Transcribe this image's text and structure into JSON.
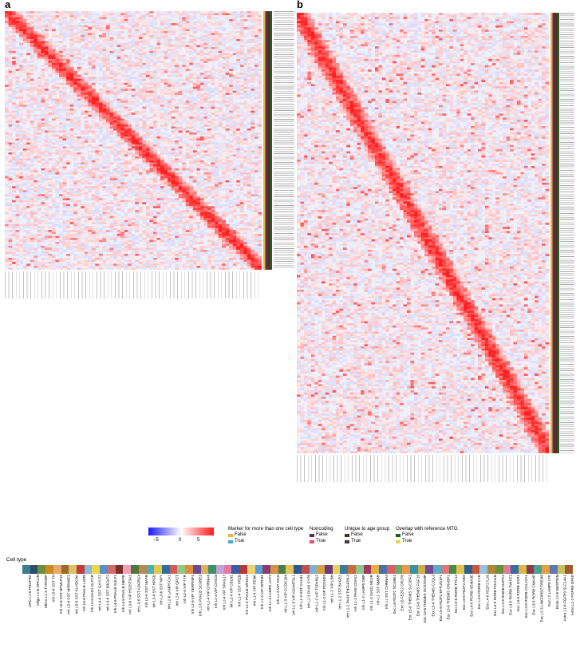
{
  "panels": {
    "a": {
      "label": "a"
    },
    "b": {
      "label": "b"
    }
  },
  "legend": {
    "colorbar": {
      "ticks": [
        "−5",
        "0",
        "5"
      ],
      "colors": {
        "low": "#1a1aff",
        "mid": "#ffffff",
        "high": "#ff1a1a"
      }
    },
    "marker": {
      "title": "Marker for more than one cell type",
      "items": [
        {
          "label": "False",
          "color": "#e5b83a"
        },
        {
          "label": "True",
          "color": "#4aa8c9"
        }
      ]
    },
    "noncoding": {
      "title": "Noncoding",
      "items": [
        {
          "label": "False",
          "color": "#5a2b5e"
        },
        {
          "label": "True",
          "color": "#d6517d"
        }
      ]
    },
    "unique": {
      "title": "Unique to age group",
      "items": [
        {
          "label": "False",
          "color": "#5a2b1c"
        },
        {
          "label": "True",
          "color": "#3a3a3a"
        }
      ]
    },
    "overlap": {
      "title": "Overlap with reference MTG",
      "items": [
        {
          "label": "False",
          "color": "#1d5c1d"
        },
        {
          "label": "True",
          "color": "#e3d64b"
        }
      ]
    }
  },
  "cell_type": {
    "title": "Cell type",
    "types": [
      {
        "name": "OPC L1-6 PDGFRA",
        "color": "#3a7d8c"
      },
      {
        "name": "Oligo L1-6 OPALIN",
        "color": "#2b4f6b"
      },
      {
        "name": "Micro L1-3 TYROBP",
        "color": "#6f8f3c"
      },
      {
        "name": "Inh L5-6 SST TH",
        "color": "#c98a1e"
      },
      {
        "name": "Inh L5-6 SST NPM1P10",
        "color": "#e6a86b"
      },
      {
        "name": "Inh L5-6 SST MIR548F2",
        "color": "#9a6c2a"
      },
      {
        "name": "Inh L5-6 SST KLHDC8A",
        "color": "#d9c06a"
      },
      {
        "name": "Inh L5-6 PVALB LGR5",
        "color": "#c23b3b"
      },
      {
        "name": "Inh L5-6 GAD1 GLP1R",
        "color": "#8fb8d9"
      },
      {
        "name": "Inh L4-6 SST GXYLT2",
        "color": "#e8d84a"
      },
      {
        "name": "Inh L4-6 SST B3GAT2",
        "color": "#5b8fc4"
      },
      {
        "name": "Inh L4-6 PVALB SULF1",
        "color": "#d46a6a"
      },
      {
        "name": "Inh L4-5 PVALB MEPE",
        "color": "#7a2e2e"
      },
      {
        "name": "Inh L3-6 VIP HS3ST3A1",
        "color": "#f2a0b8"
      },
      {
        "name": "Inh L3-5 SST ADGRG4",
        "color": "#4d7a3a"
      },
      {
        "name": "Inh L3-5 SST MAFB",
        "color": "#b58b5a"
      },
      {
        "name": "Inh L3-6 SST HPGD",
        "color": "#4fb0b0"
      },
      {
        "name": "Inh L3-6 SST NPY",
        "color": "#e2c64d"
      },
      {
        "name": "Inh L2-6 LAMP5 CA1",
        "color": "#2f6f9f"
      },
      {
        "name": "Inh L2-6 VIP QPCT",
        "color": "#cf5c5c"
      },
      {
        "name": "Inh L2-5 VIP TYR",
        "color": "#94c98a"
      },
      {
        "name": "Inh L2-5 VIP SERPINF1",
        "color": "#e38c3a"
      },
      {
        "name": "Inh L2-5 PVALB SCUBE3",
        "color": "#6d4a8f"
      },
      {
        "name": "Inh L2-4 VIP CHRNA6",
        "color": "#d7b25a"
      },
      {
        "name": "Inh L2-3 VIP CASC6",
        "color": "#3e8f6b"
      },
      {
        "name": "Inh L2-4 VIP SPAG17",
        "color": "#c4a3d9"
      },
      {
        "name": "Inh L2-4 VIP CBLN1",
        "color": "#e07aa0"
      },
      {
        "name": "Inh L2-4 SST FRZB",
        "color": "#3b5ea3"
      },
      {
        "name": "Inh L2-4 PVALB WFDC2",
        "color": "#b23a3a"
      },
      {
        "name": "Inh L1-4 VIP PENK",
        "color": "#f0d070"
      },
      {
        "name": "Inh L1-4 VIP OPRM1",
        "color": "#5a9fd4"
      },
      {
        "name": "Inh L1-4 LAMP5 LCP2",
        "color": "#8a3c6e"
      },
      {
        "name": "Inh L1-3 VIP GGH",
        "color": "#d98f4a"
      },
      {
        "name": "Inh L1-3 VIP CCDC184",
        "color": "#4a7f4a"
      },
      {
        "name": "Inh L1-3 VIP ADAMTSL1",
        "color": "#e3c35a"
      },
      {
        "name": "Inh L1-3 SST CALB1",
        "color": "#2a5b8c"
      },
      {
        "name": "Inh L1-3 PAX6 SYT6",
        "color": "#c05050"
      },
      {
        "name": "Inh L1-2 VIP TSPAN12",
        "color": "#7fb0d0"
      },
      {
        "name": "Inh L1-2 VIP PCDH20",
        "color": "#d8a040"
      },
      {
        "name": "Inh L1-2 VIP LBH",
        "color": "#6a3a7a"
      },
      {
        "name": "Inh L1-2 SST BAGE2",
        "color": "#e6d25a"
      },
      {
        "name": "Inh L1-2 PAX6 TNFAIP8L3",
        "color": "#3c7a9c"
      },
      {
        "name": "Inh L1-2 PAX6 CDH12",
        "color": "#cf6a3a"
      },
      {
        "name": "Inh L1-2 LAMP5 DBP",
        "color": "#8fc48f"
      },
      {
        "name": "Inh L1-2 GAD1 MC4R",
        "color": "#a03a5a"
      },
      {
        "name": "Inh L1 SST NMBR",
        "color": "#e0b040"
      },
      {
        "name": "Inh L1 SST CHRNA4",
        "color": "#4a6fa8"
      },
      {
        "name": "Exc L6 FEZF2 SCUBE1",
        "color": "#d46060"
      },
      {
        "name": "Exc L6 FEZF2 OR2T8",
        "color": "#6aa86a"
      },
      {
        "name": "Exc L5-6 THEMIS SLC35F2",
        "color": "#e89a4a"
      },
      {
        "name": "Exc L5-6 THEMIS FGF10",
        "color": "#3a8fa0"
      },
      {
        "name": "Exc L5-6 THEMIS DCSTAMP",
        "color": "#c9b04a"
      },
      {
        "name": "Exc L5-6 THEMIS C1QL3",
        "color": "#7a4a8f"
      },
      {
        "name": "Exc L5-6 FEZF2 EFTUD1P1",
        "color": "#5fa8c8"
      },
      {
        "name": "Exc L5-6 THEMIS CRABP1",
        "color": "#d87a7a"
      },
      {
        "name": "Exc L5-6 RORB TTC12",
        "color": "#4a8a4a"
      },
      {
        "name": "Exc L5-6 FEZF2 ABO",
        "color": "#e3c44a"
      },
      {
        "name": "Exc L4-6 RORB SEMA3E",
        "color": "#2f5f8f"
      },
      {
        "name": "Exc L4-6 RORB C1R",
        "color": "#c45a3a"
      },
      {
        "name": "Exc L4-6 FEZF2 IL26",
        "color": "#9ac0e0"
      },
      {
        "name": "Exc L4-5 RORB FOLH1B",
        "color": "#b0863a"
      },
      {
        "name": "Exc L4-5 RORB DAPK2",
        "color": "#6a8f3a"
      },
      {
        "name": "Exc L3-5 RORB TWIST2",
        "color": "#e07a9a"
      },
      {
        "name": "Exc L3-5 RORB ESR1",
        "color": "#3a6aa0"
      },
      {
        "name": "Exc L3-5 RORB COL22A1",
        "color": "#d8b84a"
      },
      {
        "name": "Exc L3-5 RORB CMAHP",
        "color": "#8a3a4a"
      },
      {
        "name": "Exc L2-3 LINC00507 FREM3",
        "color": "#4fa090"
      },
      {
        "name": "Exc L2 LAMP5 LTK",
        "color": "#e3a040"
      },
      {
        "name": "Endo L2-6 NOSTRIN",
        "color": "#5a7ab0"
      },
      {
        "name": "Astro L1-6 FGFR3 SLC14A1",
        "color": "#c8c060"
      },
      {
        "name": "Astro L1-2 FGFR3 GFAP",
        "color": "#a05a2a"
      }
    ]
  }
}
